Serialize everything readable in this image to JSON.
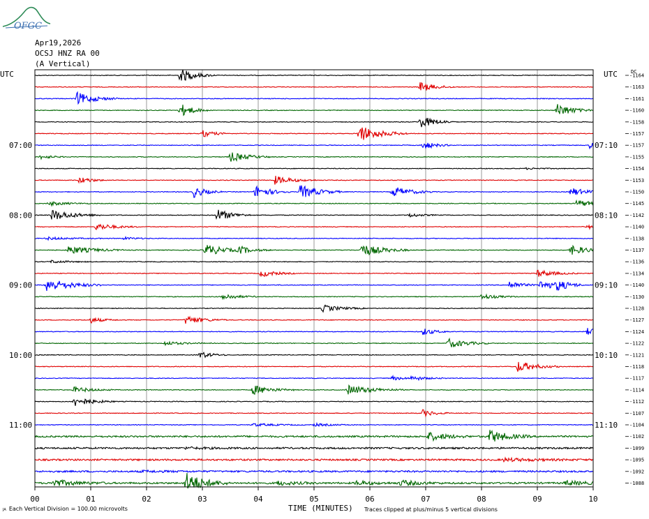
{
  "logo": {
    "text": "OFGC",
    "color": "#3a6fb0"
  },
  "header": {
    "date": "Apr19,2026",
    "station": "OCSJ HNZ RA 00",
    "component": "(A Vertical)"
  },
  "utc_left": "UTC",
  "utc_right": "UTC",
  "dc_label": "DC",
  "footer": {
    "scale": "Each Vertical Division =  100.00 microvolts",
    "xlabel": "TIME (MINUTES)",
    "clip": "Traces clipped at plus/minus 5 vertical divisions"
  },
  "colors": {
    "trace_cycle": [
      "#000000",
      "#e00000",
      "#0000ff",
      "#006600"
    ],
    "grid": "#808080"
  },
  "chart_data": {
    "type": "line",
    "title": "Apr19,2026 OCSJ HNZ RA 00 (A Vertical)",
    "xlabel": "TIME (MINUTES)",
    "xlim": [
      0,
      10
    ],
    "x_ticks": [
      "00",
      "01",
      "02",
      "03",
      "04",
      "05",
      "06",
      "07",
      "08",
      "09",
      "10"
    ],
    "rows": 36,
    "left_time_labels": [
      {
        "row": 6,
        "label": "07:00"
      },
      {
        "row": 12,
        "label": "08:00"
      },
      {
        "row": 18,
        "label": "09:00"
      },
      {
        "row": 24,
        "label": "10:00"
      },
      {
        "row": 30,
        "label": "11:00"
      }
    ],
    "right_time_labels": [
      {
        "row": 6,
        "label": "07:10"
      },
      {
        "row": 12,
        "label": "08:10"
      },
      {
        "row": 18,
        "label": "09:10"
      },
      {
        "row": 24,
        "label": "10:10"
      },
      {
        "row": 30,
        "label": "11:10"
      }
    ],
    "dc_offsets": [
      -1164,
      -1163,
      -1161,
      -1160,
      -1158,
      -1157,
      -1157,
      -1155,
      -1154,
      -1153,
      -1150,
      -1145,
      -1142,
      -1140,
      -1138,
      -1137,
      -1136,
      -1134,
      -1140,
      -1130,
      -1128,
      -1127,
      -1124,
      -1122,
      -1121,
      -1118,
      -1117,
      -1114,
      -1112,
      -1107,
      -1104,
      -1102,
      -1099,
      -1095,
      -1092,
      -1088
    ],
    "events": [
      [
        [
          2.6,
          10,
          0.25
        ]
      ],
      [
        [
          6.9,
          7,
          0.25
        ]
      ],
      [
        [
          0.75,
          9,
          0.3
        ]
      ],
      [
        [
          2.6,
          10,
          0.2
        ],
        [
          9.35,
          10,
          0.25
        ]
      ],
      [
        [
          6.9,
          9,
          0.25
        ]
      ],
      [
        [
          3.0,
          5,
          0.2
        ],
        [
          5.8,
          12,
          0.35
        ]
      ],
      [
        [
          6.95,
          6,
          0.2
        ],
        [
          9.95,
          7,
          0.15
        ]
      ],
      [
        [
          0.1,
          3,
          0.2
        ],
        [
          3.5,
          7,
          0.3
        ]
      ],
      [
        [
          8.8,
          1,
          0.3
        ]
      ],
      [
        [
          0.8,
          5,
          0.2
        ],
        [
          4.3,
          6,
          0.3
        ]
      ],
      [
        [
          2.85,
          8,
          0.2
        ],
        [
          3.95,
          9,
          0.25
        ],
        [
          4.75,
          10,
          0.3
        ],
        [
          6.4,
          8,
          0.3
        ],
        [
          9.6,
          6,
          0.25
        ]
      ],
      [
        [
          0.25,
          3,
          0.3
        ],
        [
          9.7,
          5,
          0.3
        ]
      ],
      [
        [
          0.3,
          8,
          0.35
        ],
        [
          3.25,
          9,
          0.25
        ],
        [
          6.7,
          3,
          0.2
        ]
      ],
      [
        [
          1.1,
          5,
          0.3
        ],
        [
          9.9,
          3,
          0.2
        ]
      ],
      [
        [
          0.2,
          2,
          0.4
        ],
        [
          1.6,
          2,
          0.2
        ]
      ],
      [
        [
          0.6,
          6,
          0.4
        ],
        [
          3.05,
          9,
          0.3
        ],
        [
          3.65,
          5,
          0.25
        ],
        [
          5.85,
          9,
          0.35
        ],
        [
          9.6,
          7,
          0.3
        ]
      ],
      [
        [
          0.3,
          2,
          0.3
        ]
      ],
      [
        [
          4.05,
          5,
          0.25
        ],
        [
          9.0,
          5,
          0.3
        ]
      ],
      [
        [
          0.2,
          10,
          0.4
        ],
        [
          8.5,
          6,
          0.2
        ],
        [
          9.05,
          7,
          0.3
        ],
        [
          9.35,
          6,
          0.2
        ]
      ],
      [
        [
          3.35,
          5,
          0.25
        ],
        [
          8.0,
          4,
          0.25
        ]
      ],
      [
        [
          5.15,
          5,
          0.3
        ]
      ],
      [
        [
          1.0,
          4,
          0.2
        ],
        [
          2.7,
          6,
          0.3
        ]
      ],
      [
        [
          6.95,
          5,
          0.2
        ],
        [
          9.9,
          5,
          0.25
        ]
      ],
      [
        [
          2.3,
          3,
          0.3
        ],
        [
          7.4,
          7,
          0.3
        ]
      ],
      [
        [
          2.95,
          5,
          0.2
        ]
      ],
      [
        [
          8.65,
          8,
          0.3
        ]
      ],
      [
        [
          6.4,
          3,
          0.2
        ],
        [
          6.75,
          3,
          0.25
        ]
      ],
      [
        [
          0.7,
          4,
          0.3
        ],
        [
          3.9,
          7,
          0.3
        ],
        [
          5.6,
          7,
          0.4
        ]
      ],
      [
        [
          0.7,
          7,
          0.3
        ]
      ],
      [
        [
          6.95,
          5,
          0.2
        ]
      ],
      [
        [
          3.9,
          2,
          0.4
        ],
        [
          5.0,
          2,
          0.3
        ]
      ],
      [
        [
          7.05,
          6,
          0.3
        ],
        [
          8.15,
          9,
          0.3
        ]
      ],
      [
        [
          2.7,
          1,
          0.5
        ]
      ],
      [
        [
          8.4,
          2,
          0.6
        ]
      ],
      [
        [
          1.9,
          1,
          0.5
        ]
      ],
      [
        [
          0.3,
          5,
          0.4
        ],
        [
          2.7,
          15,
          0.3
        ],
        [
          4.35,
          3,
          0.3
        ],
        [
          5.75,
          3,
          0.3
        ],
        [
          6.55,
          4,
          0.3
        ],
        [
          9.5,
          3,
          0.4
        ]
      ]
    ]
  }
}
